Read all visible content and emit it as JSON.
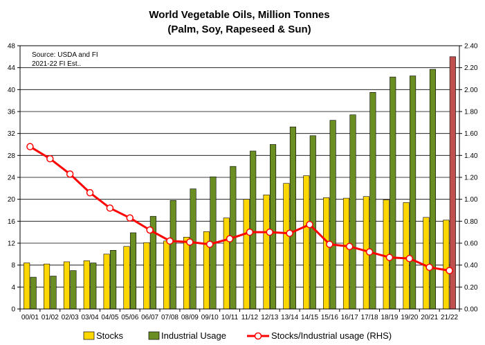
{
  "chart_data": {
    "type": "bar",
    "title": "World Vegetable Oils, Million Tonnes",
    "subtitle": "(Palm, Soy, Rapeseed & Sun)",
    "annotations": [
      "Source: USDA and FI",
      "2021-22 FI Est.."
    ],
    "categories": [
      "00/01",
      "01/02",
      "02/03",
      "03/04",
      "04/05",
      "05/06",
      "06/07",
      "07/08",
      "08/09",
      "09/10",
      "10/11",
      "11/12",
      "12/13",
      "13/14",
      "14/15",
      "15/16",
      "16/17",
      "17/18",
      "18/19",
      "19/20",
      "20/21",
      "21/22"
    ],
    "series": [
      {
        "name": "Stocks",
        "type": "bar",
        "axis": "left",
        "color": "#ffd700",
        "values": [
          8.4,
          8.2,
          8.6,
          8.8,
          10.0,
          11.4,
          12.1,
          12.4,
          13.1,
          14.1,
          16.6,
          20.0,
          20.8,
          22.9,
          24.3,
          20.3,
          20.2,
          20.5,
          19.9,
          19.4,
          16.7,
          16.2
        ]
      },
      {
        "name": "Industrial Usage",
        "type": "bar",
        "axis": "left",
        "color": "#6b8e23",
        "highlight": {
          "index": 21,
          "color": "#c0504d"
        },
        "values": [
          5.8,
          6.0,
          7.0,
          8.4,
          10.7,
          13.9,
          16.9,
          19.8,
          21.9,
          24.1,
          26.0,
          28.8,
          30.0,
          33.2,
          31.6,
          34.4,
          35.4,
          39.5,
          42.3,
          42.5,
          43.7,
          46.0
        ]
      },
      {
        "name": "Stocks/Industrial usage (RHS)",
        "type": "line",
        "axis": "right",
        "color": "#ff0000",
        "marker_fill": "#ffffff",
        "values": [
          1.48,
          1.37,
          1.23,
          1.06,
          0.92,
          0.83,
          0.72,
          0.62,
          0.61,
          0.59,
          0.64,
          0.7,
          0.7,
          0.69,
          0.77,
          0.59,
          0.57,
          0.52,
          0.47,
          0.46,
          0.38,
          0.35
        ]
      }
    ],
    "y_left": {
      "min": 0,
      "max": 48,
      "step": 4,
      "ticks": [
        "0",
        "4",
        "8",
        "12",
        "16",
        "20",
        "24",
        "28",
        "32",
        "36",
        "40",
        "44",
        "48"
      ]
    },
    "y_right": {
      "min": 0,
      "max": 2.4,
      "step": 0.2,
      "ticks": [
        "0.00",
        "0.20",
        "0.40",
        "0.60",
        "0.80",
        "1.00",
        "1.20",
        "1.40",
        "1.60",
        "1.80",
        "2.00",
        "2.20",
        "2.40"
      ]
    },
    "grid": true,
    "legend": {
      "position": "bottom",
      "items": [
        "Stocks",
        "Industrial Usage",
        "Stocks/Industrial usage (RHS)"
      ]
    }
  }
}
